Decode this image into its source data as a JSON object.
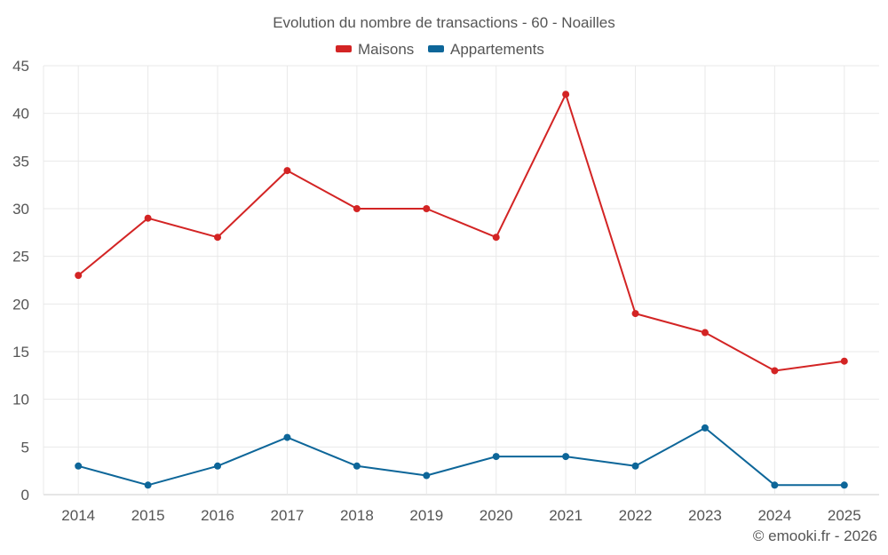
{
  "chart_data": {
    "type": "line",
    "title": "Evolution du nombre de transactions - 60 - Noailles",
    "categories": [
      "2014",
      "2015",
      "2016",
      "2017",
      "2018",
      "2019",
      "2020",
      "2021",
      "2022",
      "2023",
      "2024",
      "2025"
    ],
    "series": [
      {
        "name": "Maisons",
        "color": "#d32424",
        "values": [
          23,
          29,
          27,
          34,
          30,
          30,
          27,
          42,
          19,
          17,
          13,
          14
        ]
      },
      {
        "name": "Appartements",
        "color": "#0d6699",
        "values": [
          3,
          1,
          3,
          6,
          3,
          2,
          4,
          4,
          3,
          7,
          1,
          1
        ]
      }
    ],
    "ylim": [
      0,
      45
    ],
    "yticks": [
      "0",
      "5",
      "10",
      "15",
      "20",
      "25",
      "30",
      "35",
      "40",
      "45"
    ],
    "legend_position": "top-center",
    "grid": true,
    "xlabel": "",
    "ylabel": ""
  },
  "credit": "© emooki.fr - 2026"
}
